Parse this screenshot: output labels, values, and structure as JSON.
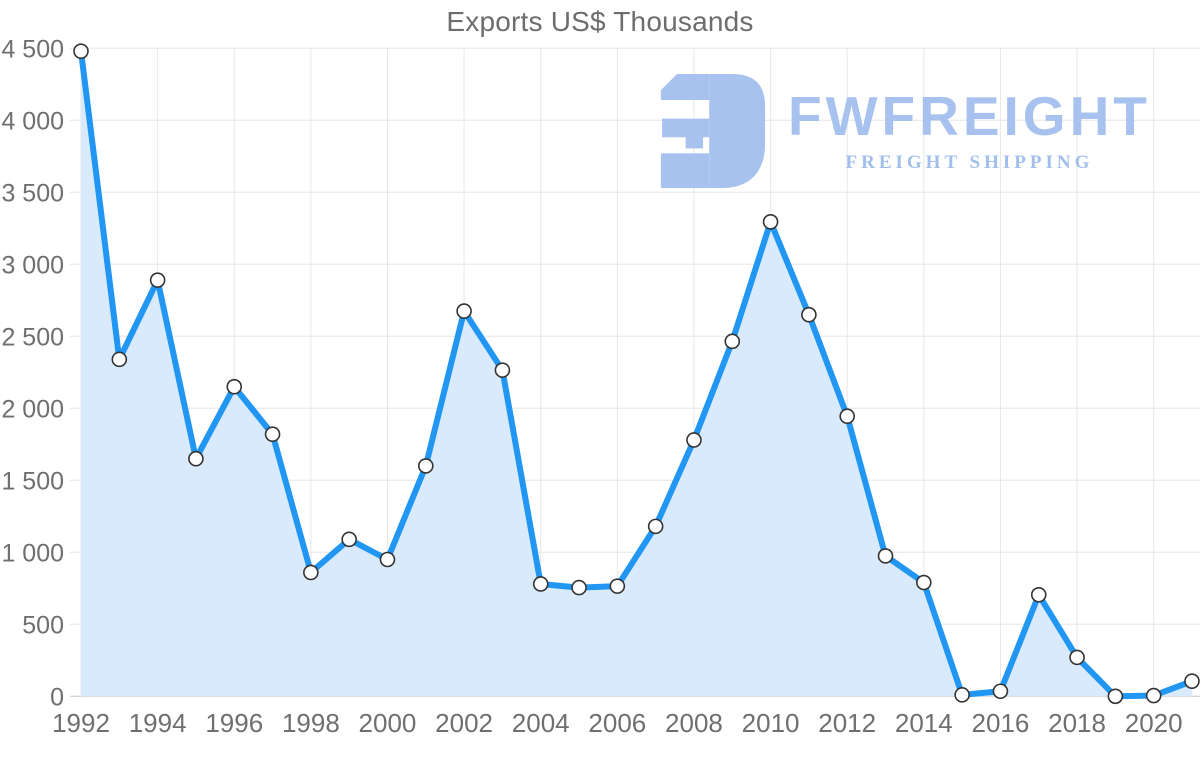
{
  "watermark": {
    "brand": "FWFREIGHT",
    "tagline": "FREIGHT SHIPPING",
    "icon": "fwfreight-logo-icon",
    "brand_color": "#a7c2ee",
    "tagline_color": "#a2bfec"
  },
  "colors": {
    "line": "#2196f3",
    "area": "#d9eafc",
    "marker_fill": "#ffffff",
    "marker_stroke": "#333333",
    "grid": "#e6e6e6",
    "axis": "#c8c8c8",
    "label": "#6f6f6f",
    "title": "#6d6d6d"
  },
  "chart_data": {
    "type": "area",
    "title": "Exports US$ Thousands",
    "x": [
      1992,
      1993,
      1994,
      1995,
      1996,
      1997,
      1998,
      1999,
      2000,
      2001,
      2002,
      2003,
      2004,
      2005,
      2006,
      2007,
      2008,
      2009,
      2010,
      2011,
      2012,
      2013,
      2014,
      2015,
      2016,
      2017,
      2018,
      2019,
      2020,
      2021
    ],
    "values": [
      4480,
      2340,
      2890,
      1650,
      2150,
      1820,
      860,
      1090,
      950,
      1600,
      2675,
      2265,
      780,
      755,
      765,
      1180,
      1780,
      2465,
      3295,
      2650,
      1945,
      975,
      790,
      10,
      35,
      705,
      270,
      0,
      5,
      105
    ],
    "xlabel": "",
    "ylabel": "",
    "ylim": [
      0,
      4500
    ],
    "y_ticks": [
      0,
      500,
      1000,
      1500,
      2000,
      2500,
      3000,
      3500,
      4000,
      4500
    ],
    "y_tick_labels": [
      "0",
      "500",
      "1 000",
      "1 500",
      "2 000",
      "2 500",
      "3 000",
      "3 500",
      "4 000",
      "4 500"
    ],
    "x_ticks": [
      1992,
      1994,
      1996,
      1998,
      2000,
      2002,
      2004,
      2006,
      2008,
      2010,
      2012,
      2014,
      2016,
      2018,
      2020
    ],
    "x_tick_labels": [
      "1992",
      "1994",
      "1996",
      "1998",
      "2000",
      "2002",
      "2004",
      "2006",
      "2008",
      "2010",
      "2012",
      "2014",
      "2016",
      "2018",
      "2020"
    ],
    "grid": true,
    "legend": "none",
    "markers": true
  }
}
